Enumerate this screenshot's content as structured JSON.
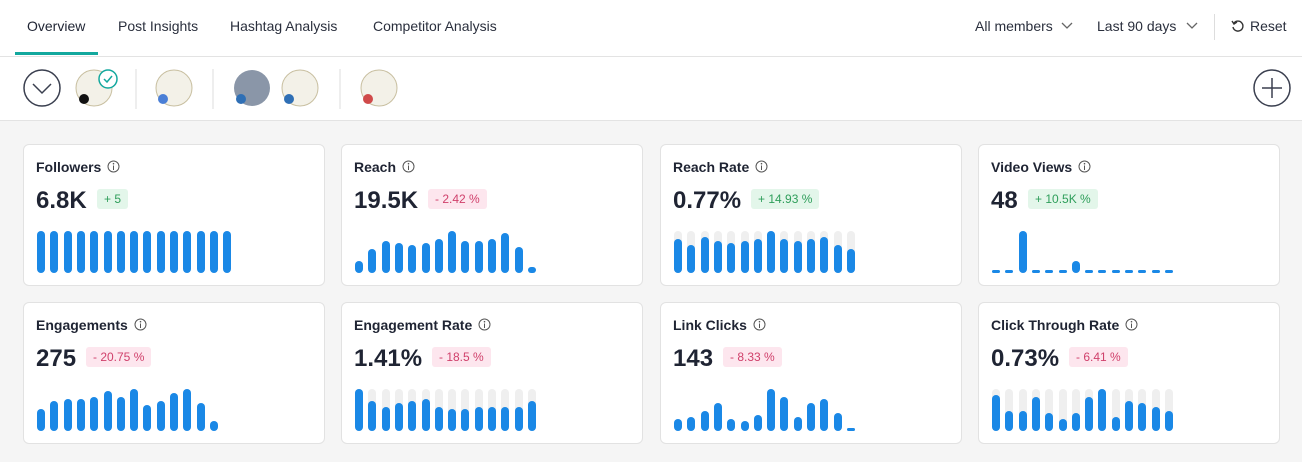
{
  "tabs": [
    "Overview",
    "Post Insights",
    "Hashtag Analysis",
    "Competitor Analysis"
  ],
  "active_tab": 0,
  "filters": {
    "members": "All members",
    "period": "Last 90 days",
    "reset": "Reset"
  },
  "bar_color": "#1a88e6",
  "cards": [
    {
      "title": "Followers",
      "value": "6.8K",
      "change": "+ 5",
      "trend": "up",
      "track": false,
      "bars": [
        42,
        42,
        42,
        42,
        42,
        42,
        42,
        42,
        42,
        42,
        42,
        42,
        42,
        42,
        42
      ]
    },
    {
      "title": "Reach",
      "value": "19.5K",
      "change": "- 2.42 %",
      "trend": "down",
      "track": false,
      "bars": [
        12,
        24,
        32,
        30,
        28,
        30,
        34,
        42,
        32,
        32,
        34,
        40,
        26,
        6
      ]
    },
    {
      "title": "Reach Rate",
      "value": "0.77%",
      "change": "+ 14.93 %",
      "trend": "up",
      "track": true,
      "bars": [
        34,
        28,
        36,
        32,
        30,
        32,
        34,
        42,
        34,
        32,
        34,
        36,
        28,
        24
      ]
    },
    {
      "title": "Video Views",
      "value": "48",
      "change": "+ 10.5K %",
      "trend": "up",
      "track": false,
      "bars": [
        3,
        3,
        42,
        3,
        3,
        3,
        12,
        3,
        3,
        3,
        3,
        3,
        3,
        3
      ]
    },
    {
      "title": "Engagements",
      "value": "275",
      "change": "- 20.75 %",
      "trend": "down",
      "track": false,
      "bars": [
        22,
        30,
        32,
        32,
        34,
        40,
        34,
        42,
        26,
        30,
        38,
        42,
        28,
        10
      ]
    },
    {
      "title": "Engagement Rate",
      "value": "1.41%",
      "change": "- 18.5 %",
      "trend": "down",
      "track": true,
      "bars": [
        42,
        30,
        24,
        28,
        30,
        32,
        24,
        22,
        22,
        24,
        24,
        24,
        24,
        30
      ]
    },
    {
      "title": "Link Clicks",
      "value": "143",
      "change": "- 8.33 %",
      "trend": "down",
      "track": false,
      "bars": [
        12,
        14,
        20,
        28,
        12,
        10,
        16,
        42,
        34,
        14,
        28,
        32,
        18,
        3
      ]
    },
    {
      "title": "Click Through Rate",
      "value": "0.73%",
      "change": "- 6.41 %",
      "trend": "down",
      "track": true,
      "bars": [
        36,
        20,
        20,
        34,
        18,
        12,
        18,
        34,
        42,
        14,
        30,
        28,
        24,
        20
      ]
    }
  ]
}
